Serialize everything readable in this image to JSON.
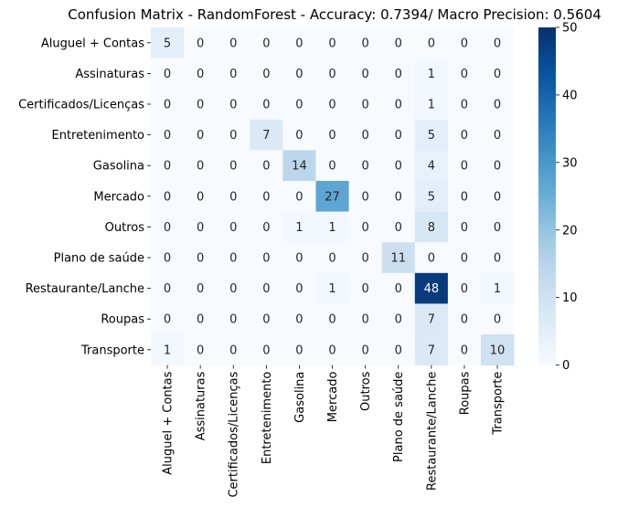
{
  "chart_data": {
    "type": "heatmap",
    "title": "Confusion Matrix - RandomForest - Accuracy: 0.7394/ Macro Precision: 0.5604",
    "xlabel": "",
    "ylabel": "",
    "row_labels": [
      "Aluguel + Contas",
      "Assinaturas",
      "Certificados/Licenças",
      "Entretenimento",
      "Gasolina",
      "Mercado",
      "Outros",
      "Plano de saúde",
      "Restaurante/Lanche",
      "Roupas",
      "Transporte"
    ],
    "col_labels": [
      "Aluguel + Contas",
      "Assinaturas",
      "Certificados/Licenças",
      "Entretenimento",
      "Gasolina",
      "Mercado",
      "Outros",
      "Plano de saúde",
      "Restaurante/Lanche",
      "Roupas",
      "Transporte"
    ],
    "values": [
      [
        5,
        0,
        0,
        0,
        0,
        0,
        0,
        0,
        0,
        0,
        0
      ],
      [
        0,
        0,
        0,
        0,
        0,
        0,
        0,
        0,
        1,
        0,
        0
      ],
      [
        0,
        0,
        0,
        0,
        0,
        0,
        0,
        0,
        1,
        0,
        0
      ],
      [
        0,
        0,
        0,
        7,
        0,
        0,
        0,
        0,
        5,
        0,
        0
      ],
      [
        0,
        0,
        0,
        0,
        14,
        0,
        0,
        0,
        4,
        0,
        0
      ],
      [
        0,
        0,
        0,
        0,
        0,
        27,
        0,
        0,
        5,
        0,
        0
      ],
      [
        0,
        0,
        0,
        0,
        1,
        1,
        0,
        0,
        8,
        0,
        0
      ],
      [
        0,
        0,
        0,
        0,
        0,
        0,
        0,
        11,
        0,
        0,
        0
      ],
      [
        0,
        0,
        0,
        0,
        0,
        1,
        0,
        0,
        48,
        0,
        1
      ],
      [
        0,
        0,
        0,
        0,
        0,
        0,
        0,
        0,
        7,
        0,
        0
      ],
      [
        1,
        0,
        0,
        0,
        0,
        0,
        0,
        0,
        7,
        0,
        10
      ]
    ],
    "colorbar": {
      "range": [
        0,
        50
      ],
      "ticks": [
        "0",
        "10",
        "20",
        "30",
        "40",
        "50"
      ],
      "colormap": "Blues"
    },
    "grid": false,
    "legend": "none"
  }
}
